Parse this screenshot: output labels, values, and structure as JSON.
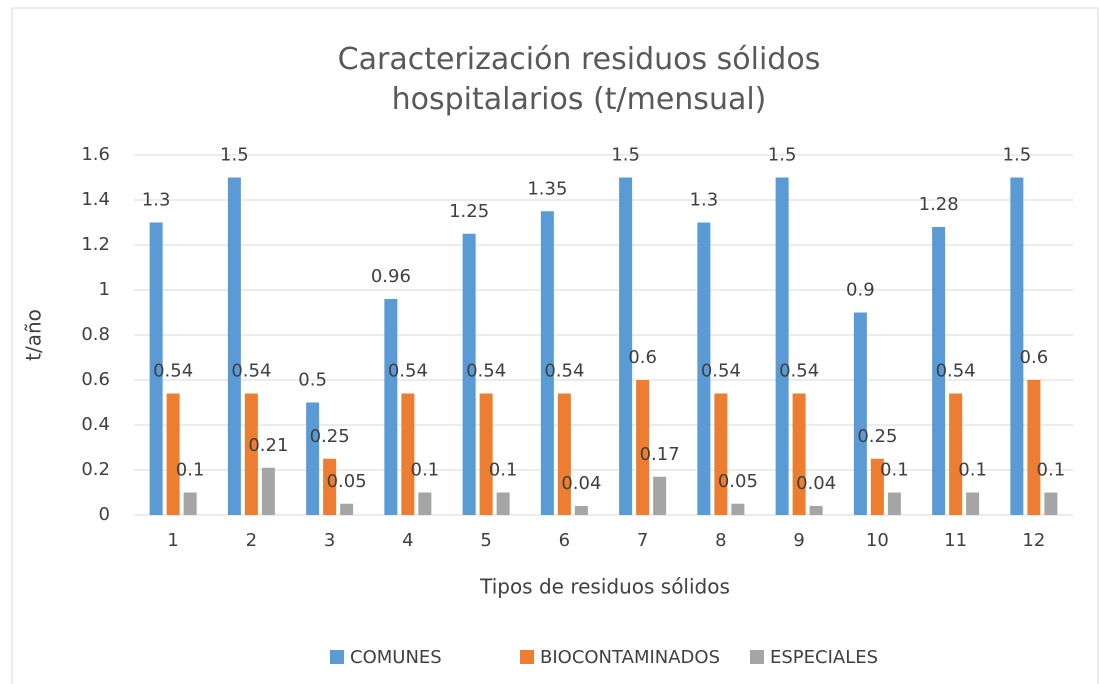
{
  "chart_data": {
    "type": "bar",
    "title": "Caracterización residuos sólidos hospitalarios (t/mensual)",
    "x_label": "Tipos de residuos sólidos",
    "y_label": "t/año",
    "categories": [
      "1",
      "2",
      "3",
      "4",
      "5",
      "6",
      "7",
      "8",
      "9",
      "10",
      "11",
      "12"
    ],
    "series": [
      {
        "name": "COMUNES",
        "color": "#5b9bd5",
        "values": [
          1.3,
          1.5,
          0.5,
          0.96,
          1.25,
          1.35,
          1.5,
          1.3,
          1.5,
          0.9,
          1.28,
          1.5
        ]
      },
      {
        "name": "BIOCONTAMINADOS",
        "color": "#ed7d31",
        "values": [
          0.54,
          0.54,
          0.25,
          0.54,
          0.54,
          0.54,
          0.6,
          0.54,
          0.54,
          0.25,
          0.54,
          0.6
        ]
      },
      {
        "name": "ESPECIALES",
        "color": "#a5a5a5",
        "values": [
          0.1,
          0.21,
          0.05,
          0.1,
          0.1,
          0.04,
          0.17,
          0.05,
          0.04,
          0.1,
          0.1,
          0.1
        ]
      }
    ],
    "ylim": [
      0,
      1.6
    ],
    "yticks": [
      0,
      0.2,
      0.4,
      0.6,
      0.8,
      1,
      1.2,
      1.4,
      1.6
    ],
    "grid": true,
    "legend": "bottom"
  }
}
